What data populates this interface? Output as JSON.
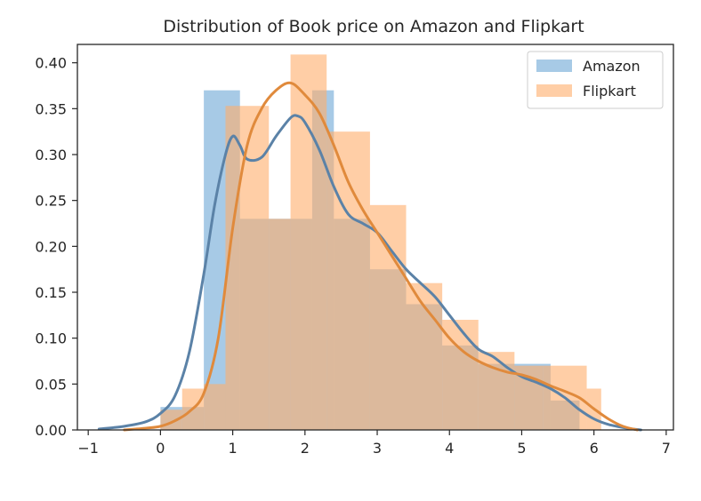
{
  "chart_data": {
    "type": "bar",
    "title": "Distribution of Book price on Amazon and Flipkart",
    "xlabel": "",
    "ylabel": "",
    "xlim": [
      -1.15,
      7.1
    ],
    "ylim": [
      0,
      0.42
    ],
    "x_ticks": [
      -1,
      0,
      1,
      2,
      3,
      4,
      5,
      6,
      7
    ],
    "x_tick_labels": [
      "−1",
      "0",
      "1",
      "2",
      "3",
      "4",
      "5",
      "6",
      "7"
    ],
    "y_ticks": [
      0,
      0.05,
      0.1,
      0.15,
      0.2,
      0.25,
      0.3,
      0.35,
      0.4
    ],
    "y_tick_labels": [
      "0.00",
      "0.05",
      "0.10",
      "0.15",
      "0.20",
      "0.25",
      "0.30",
      "0.35",
      "0.40"
    ],
    "grid": false,
    "legend_position": "top-right",
    "series": [
      {
        "name": "Amazon",
        "color": "#5f9ed1",
        "kde_color": "#5b82a7",
        "histogram": {
          "edges": [
            0.0,
            0.6,
            1.1,
            2.1,
            2.4,
            2.9,
            3.4,
            3.9,
            4.4,
            5.4,
            5.8
          ],
          "values": [
            0.025,
            0.37,
            0.23,
            0.37,
            0.23,
            0.175,
            0.137,
            0.092,
            0.072,
            0.032
          ]
        },
        "kde": {
          "x": [
            -0.85,
            -0.5,
            -0.2,
            0.0,
            0.2,
            0.4,
            0.6,
            0.75,
            0.9,
            1.0,
            1.1,
            1.2,
            1.4,
            1.6,
            1.8,
            1.9,
            2.0,
            2.2,
            2.4,
            2.6,
            2.8,
            3.0,
            3.2,
            3.4,
            3.6,
            3.8,
            4.0,
            4.2,
            4.4,
            4.6,
            4.8,
            5.0,
            5.2,
            5.4,
            5.6,
            5.8,
            6.0,
            6.2,
            6.45,
            6.65
          ],
          "y": [
            0.001,
            0.004,
            0.009,
            0.018,
            0.037,
            0.085,
            0.17,
            0.245,
            0.3,
            0.32,
            0.31,
            0.295,
            0.297,
            0.32,
            0.34,
            0.342,
            0.335,
            0.305,
            0.265,
            0.235,
            0.225,
            0.215,
            0.195,
            0.175,
            0.16,
            0.145,
            0.125,
            0.105,
            0.088,
            0.08,
            0.068,
            0.058,
            0.052,
            0.045,
            0.035,
            0.022,
            0.012,
            0.006,
            0.002,
            0.0
          ]
        }
      },
      {
        "name": "Flipkart",
        "color": "#ffad6b",
        "kde_color": "#e08a3c",
        "histogram": {
          "edges": [
            0.0,
            0.3,
            0.6,
            0.9,
            1.5,
            1.8,
            2.3,
            2.9,
            3.4,
            3.9,
            4.4,
            4.9,
            5.3,
            5.9,
            6.1
          ],
          "values": [
            0.022,
            0.045,
            0.05,
            0.353,
            0.23,
            0.409,
            0.325,
            0.245,
            0.16,
            0.12,
            0.085,
            0.07,
            0.07,
            0.045
          ]
        },
        "kde": {
          "x": [
            -0.5,
            -0.2,
            0.0,
            0.2,
            0.4,
            0.6,
            0.8,
            1.0,
            1.2,
            1.4,
            1.6,
            1.8,
            2.0,
            2.2,
            2.4,
            2.6,
            2.8,
            3.0,
            3.2,
            3.4,
            3.6,
            3.8,
            4.0,
            4.2,
            4.4,
            4.6,
            4.8,
            5.0,
            5.2,
            5.4,
            5.6,
            5.8,
            6.0,
            6.2,
            6.4,
            6.6
          ],
          "y": [
            0.0,
            0.002,
            0.004,
            0.01,
            0.02,
            0.04,
            0.1,
            0.22,
            0.31,
            0.35,
            0.37,
            0.378,
            0.365,
            0.345,
            0.31,
            0.27,
            0.24,
            0.215,
            0.19,
            0.165,
            0.14,
            0.12,
            0.1,
            0.085,
            0.075,
            0.068,
            0.063,
            0.06,
            0.055,
            0.048,
            0.042,
            0.035,
            0.023,
            0.012,
            0.004,
            0.0
          ]
        }
      }
    ]
  }
}
